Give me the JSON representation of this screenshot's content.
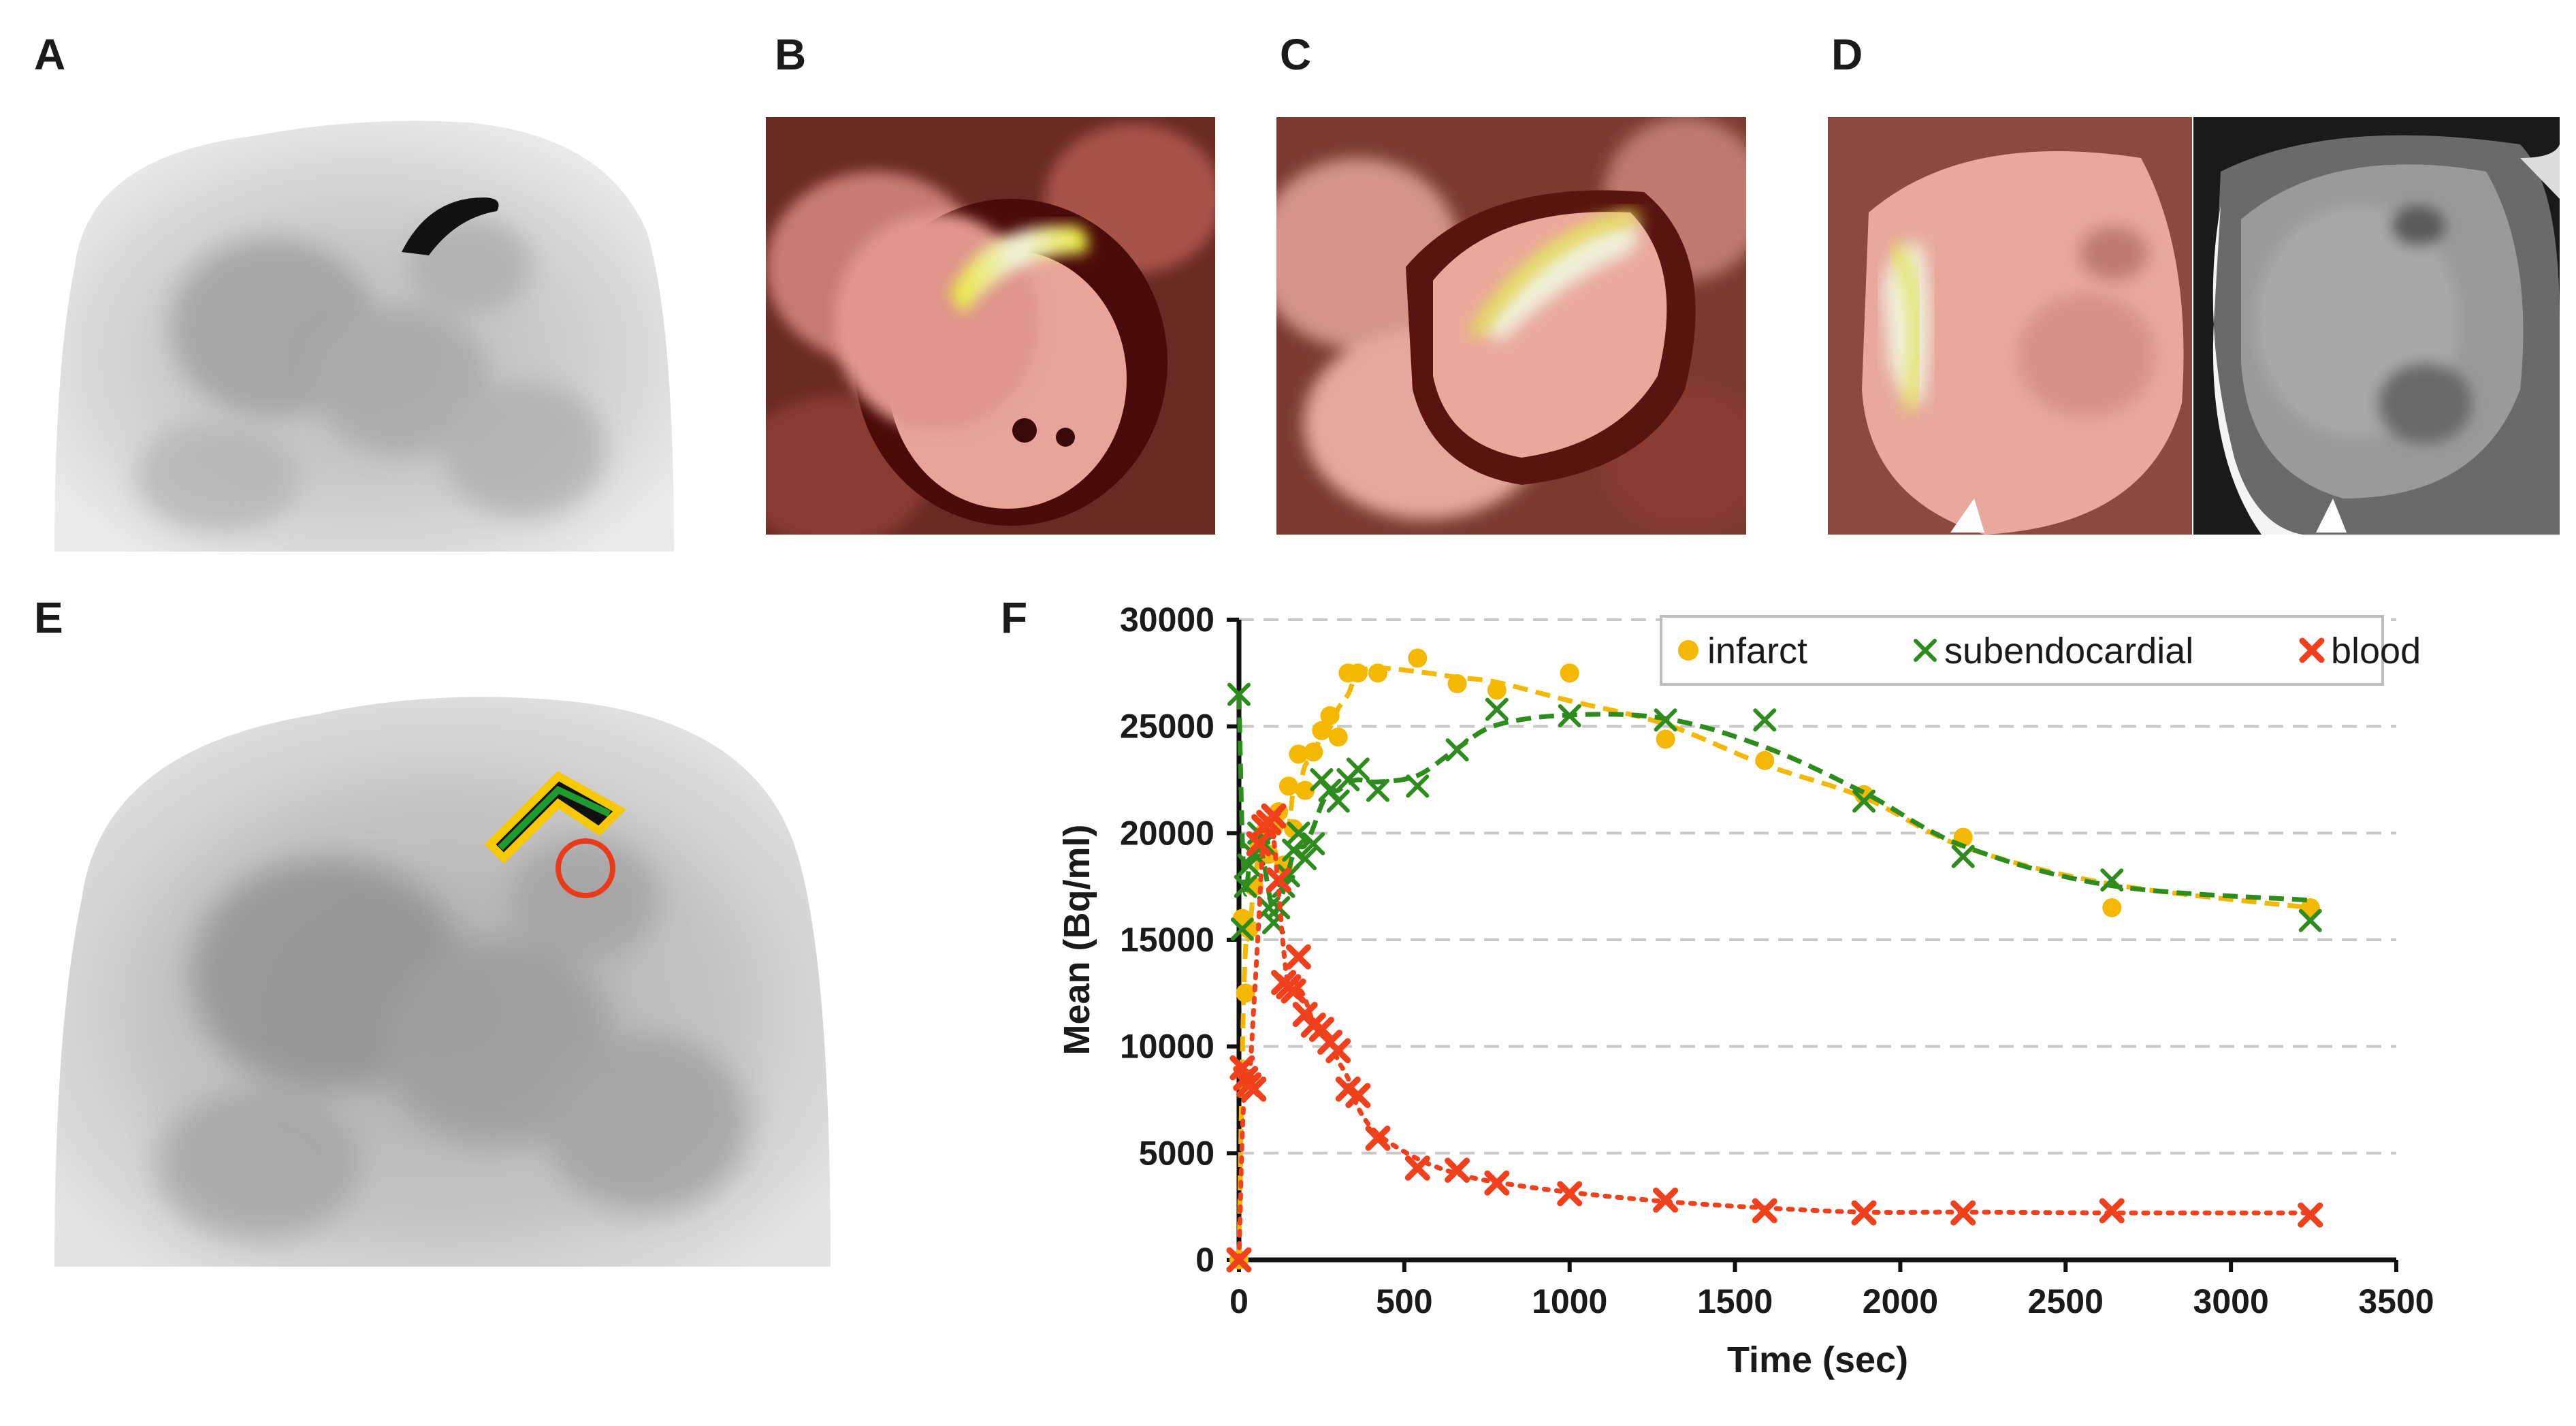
{
  "figure": {
    "panels": [
      {
        "label": "A",
        "description_role": "pet-axial"
      },
      {
        "label": "B",
        "description_role": "fused-short-axis"
      },
      {
        "label": "C",
        "description_role": "fused-long-axis"
      },
      {
        "label": "D",
        "description_role": "fused-and-lge"
      },
      {
        "label": "E",
        "description_role": "pet-with-rois"
      },
      {
        "label": "F",
        "description_role": "time-activity-curves"
      }
    ]
  },
  "chart_data": {
    "type": "scatter",
    "title": "",
    "xlabel": "Time (sec)",
    "ylabel": "Mean (Bq/ml)",
    "xlim": [
      0,
      3500
    ],
    "ylim": [
      0,
      30000
    ],
    "xticks": [
      0,
      500,
      1000,
      1500,
      2000,
      2500,
      3000,
      3500
    ],
    "yticks": [
      0,
      5000,
      10000,
      15000,
      20000,
      25000,
      30000
    ],
    "grid": "horizontal-dashed",
    "legend_position": "top-right",
    "series": [
      {
        "name": "infarct",
        "color": "#f5b800",
        "marker": "circle",
        "line": "dashed",
        "x": [
          0,
          10,
          20,
          30,
          45,
          60,
          75,
          90,
          105,
          120,
          135,
          150,
          165,
          180,
          200,
          225,
          250,
          275,
          300,
          330,
          360,
          420,
          540,
          660,
          780,
          1000,
          1290,
          1590,
          1890,
          2190,
          2640,
          3240
        ],
        "y": [
          0,
          16000,
          12500,
          15500,
          17500,
          19500,
          20000,
          19000,
          20500,
          21000,
          18500,
          22200,
          20200,
          23700,
          22000,
          23800,
          24800,
          25500,
          24500,
          27500,
          27500,
          27500,
          28200,
          27000,
          26700,
          27500,
          24400,
          23400,
          21800,
          19800,
          16500,
          16500
        ]
      },
      {
        "name": "subendocardial",
        "color": "#2e8b1e",
        "marker": "x",
        "line": "dashed",
        "x": [
          0,
          10,
          20,
          30,
          45,
          60,
          75,
          90,
          105,
          120,
          135,
          150,
          165,
          180,
          200,
          225,
          250,
          275,
          300,
          330,
          360,
          420,
          540,
          660,
          780,
          1000,
          1290,
          1590,
          1890,
          2190,
          2640,
          3240
        ],
        "y": [
          26500,
          15500,
          17500,
          18500,
          19000,
          20000,
          19500,
          16500,
          15800,
          16500,
          17500,
          18000,
          19200,
          20000,
          18800,
          19500,
          22500,
          22000,
          21500,
          22500,
          23000,
          22000,
          22200,
          23900,
          25800,
          25500,
          25300,
          25300,
          21500,
          18900,
          17800,
          15900
        ]
      },
      {
        "name": "blood",
        "color": "#f0401c",
        "marker": "x-bold",
        "line": "dotted",
        "x": [
          0,
          10,
          20,
          30,
          45,
          60,
          75,
          90,
          105,
          120,
          135,
          150,
          165,
          180,
          200,
          225,
          250,
          275,
          300,
          330,
          360,
          420,
          540,
          660,
          780,
          1000,
          1290,
          1590,
          1890,
          2190,
          2640,
          3240
        ],
        "y": [
          0,
          9000,
          8500,
          8200,
          8000,
          19500,
          20300,
          20500,
          20800,
          17800,
          13000,
          12800,
          12600,
          14200,
          11500,
          11000,
          10800,
          10200,
          9800,
          8000,
          7700,
          5700,
          4300,
          4200,
          3600,
          3100,
          2800,
          2300,
          2200,
          2200,
          2300,
          2100
        ]
      }
    ]
  }
}
